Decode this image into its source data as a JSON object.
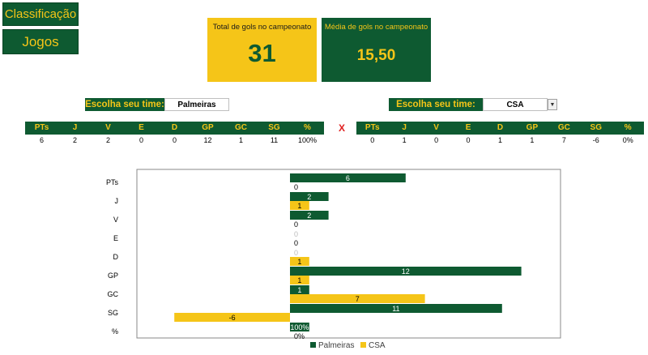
{
  "nav": {
    "classificacao": "Classificação",
    "jogos": "Jogos"
  },
  "kpis": {
    "total_title": "Total de gols no campeonato",
    "total_value": "31",
    "media_title": "Média de gols no campeonato",
    "media_value": "15,50"
  },
  "team_left": {
    "label": "Escolha seu time:",
    "value": "Palmeiras"
  },
  "team_right": {
    "label": "Escolha seu time:",
    "value": "CSA"
  },
  "vs": "X",
  "stat_headers": [
    "PTs",
    "J",
    "V",
    "E",
    "D",
    "GP",
    "GC",
    "SG",
    "%"
  ],
  "stats_left": [
    "6",
    "2",
    "2",
    "0",
    "0",
    "12",
    "1",
    "11",
    "100%"
  ],
  "stats_right": [
    "0",
    "1",
    "0",
    "0",
    "1",
    "1",
    "7",
    "-6",
    "0%"
  ],
  "colors": {
    "green": "#0e5a31",
    "yellow": "#f5c518"
  },
  "chart_data": {
    "type": "bar",
    "orientation": "horizontal",
    "categories": [
      "PTs",
      "J",
      "V",
      "E",
      "D",
      "GP",
      "GC",
      "SG",
      "%"
    ],
    "series": [
      {
        "name": "Palmeiras",
        "color": "#0e5a31",
        "values": [
          6,
          2,
          2,
          0,
          0,
          12,
          1,
          11,
          1
        ],
        "labels": [
          "6",
          "2",
          "2",
          "0",
          "0",
          "12",
          "1",
          "11",
          "100%"
        ]
      },
      {
        "name": "CSA",
        "color": "#f5c518",
        "values": [
          0,
          1,
          0,
          0,
          1,
          1,
          7,
          -6,
          0
        ],
        "labels": [
          "0",
          "1",
          "0",
          "0",
          "1",
          "1",
          "7",
          "-6",
          "0%"
        ]
      }
    ],
    "xlim": [
      -6,
      14
    ],
    "legend": "bottom",
    "grid": false
  }
}
